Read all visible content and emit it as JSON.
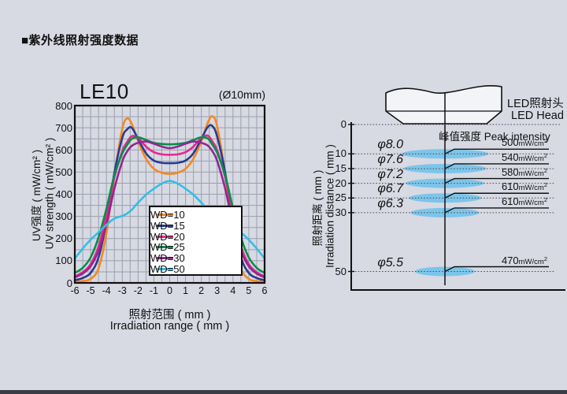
{
  "page": {
    "title": "■紫外线照射强度数据",
    "background": "#d7d9e3",
    "footer_bar_color": "#3c3c48"
  },
  "chart_data": [
    {
      "type": "line",
      "title": "LE10",
      "subtitle": "(Ø10mm)",
      "xlabel": "照射范围 ( mm )",
      "xlabel_en": "Irradiation range ( mm )",
      "ylabel": "UV强度 ( mW/cm² )",
      "ylabel_en": "UV strength ( mW/cm² )",
      "xlim": [
        -6,
        6
      ],
      "ylim": [
        0,
        800
      ],
      "x_ticks": [
        -6,
        -5,
        -4,
        -3,
        -2,
        -1,
        0,
        1,
        2,
        3,
        4,
        5,
        6
      ],
      "y_ticks": [
        0,
        100,
        200,
        300,
        400,
        500,
        600,
        700,
        800
      ],
      "grid": "on",
      "grid_minor_x_step": 0.5,
      "grid_minor_y_step": 50,
      "legend_position": "lower-center",
      "x": [
        -6,
        -5.5,
        -5,
        -4.5,
        -4,
        -3.5,
        -3,
        -2.7,
        -2.4,
        -2,
        -1.5,
        -1,
        -0.5,
        0,
        0.5,
        1,
        1.5,
        2,
        2.4,
        2.7,
        3,
        3.5,
        4,
        4.5,
        5,
        5.5,
        6
      ],
      "series": [
        {
          "name": "WD=10",
          "color": "#F5881F",
          "values": [
            5,
            8,
            18,
            65,
            225,
            485,
            695,
            742,
            718,
            640,
            560,
            515,
            497,
            492,
            497,
            515,
            560,
            640,
            722,
            752,
            705,
            495,
            228,
            66,
            18,
            8,
            5
          ]
        },
        {
          "name": "WD=15",
          "color": "#2B3A8F",
          "values": [
            12,
            22,
            45,
            115,
            275,
            495,
            655,
            692,
            700,
            650,
            585,
            552,
            542,
            540,
            542,
            552,
            585,
            650,
            703,
            708,
            660,
            500,
            280,
            116,
            45,
            22,
            12
          ]
        },
        {
          "name": "WD=20",
          "color": "#EC268F",
          "values": [
            30,
            48,
            85,
            165,
            305,
            475,
            595,
            635,
            662,
            655,
            615,
            590,
            580,
            578,
            580,
            590,
            615,
            655,
            665,
            638,
            598,
            478,
            308,
            166,
            85,
            48,
            30
          ]
        },
        {
          "name": "WD=25",
          "color": "#00904B",
          "values": [
            45,
            68,
            115,
            205,
            335,
            485,
            585,
            622,
            650,
            657,
            645,
            632,
            627,
            625,
            627,
            632,
            645,
            657,
            652,
            624,
            587,
            487,
            337,
            206,
            115,
            68,
            45
          ]
        },
        {
          "name": "WD=30",
          "color": "#93278F",
          "values": [
            25,
            42,
            75,
            145,
            265,
            425,
            548,
            592,
            618,
            632,
            638,
            628,
            615,
            608,
            615,
            628,
            638,
            632,
            620,
            594,
            550,
            427,
            267,
            146,
            75,
            42,
            25
          ]
        },
        {
          "name": "WD=50",
          "color": "#33BEE8",
          "values": [
            110,
            155,
            195,
            228,
            262,
            290,
            302,
            313,
            330,
            362,
            398,
            425,
            448,
            460,
            448,
            425,
            398,
            362,
            330,
            313,
            302,
            290,
            262,
            228,
            195,
            155,
            110
          ]
        }
      ]
    },
    {
      "type": "diagram-table",
      "title": "峰值强度 Peak intensity",
      "head_label": "LED照射头",
      "head_label_en": "LED Head",
      "ylabel": "照射距离 ( mm )",
      "ylabel_en": "Irradiation distance ( mm )",
      "unit": "mW/cm²",
      "unit_base": "mW/cm",
      "unit_sup": "2",
      "diameter_prefix": "φ",
      "distance_ticks": [
        0,
        10,
        15,
        20,
        25,
        30,
        50
      ],
      "spot_color": "#70C2EB",
      "rows": [
        {
          "distance": 10,
          "diameter": 8.0,
          "peak": 500
        },
        {
          "distance": 15,
          "diameter": 7.6,
          "peak": 540
        },
        {
          "distance": 20,
          "diameter": 7.2,
          "peak": 580
        },
        {
          "distance": 25,
          "diameter": 6.7,
          "peak": 610
        },
        {
          "distance": 30,
          "diameter": 6.3,
          "peak": 610
        },
        {
          "distance": 50,
          "diameter": 5.5,
          "peak": 470
        }
      ]
    }
  ]
}
